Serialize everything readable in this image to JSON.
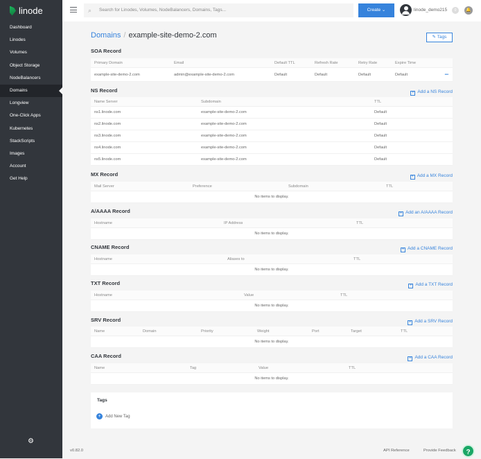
{
  "brand": "linode",
  "sidebar": {
    "items": [
      {
        "label": "Dashboard"
      },
      {
        "label": "Linodes"
      },
      {
        "label": "Volumes"
      },
      {
        "label": "Object Storage"
      },
      {
        "label": "NodeBalancers"
      },
      {
        "label": "Domains",
        "active": true
      },
      {
        "label": "Longview"
      },
      {
        "label": "One-Click Apps"
      },
      {
        "label": "Kubernetes"
      },
      {
        "label": "StackScripts"
      },
      {
        "label": "Images"
      },
      {
        "label": "Account"
      },
      {
        "label": "Get Help"
      }
    ]
  },
  "topbar": {
    "search_placeholder": "Search for Linodes, Volumes, NodeBalancers, Domains, Tags...",
    "create_label": "Create",
    "username": "linode_demo215",
    "notification_count": "0"
  },
  "breadcrumb": {
    "parent": "Domains",
    "current": "example-site-demo-2.com"
  },
  "tags_button": "Tags",
  "sections": [
    {
      "title": "SOA Record",
      "columns": [
        "Primary Domain",
        "Email",
        "Default TTL",
        "Refresh Rate",
        "Retry Rate",
        "Expire Time"
      ],
      "rows": [
        [
          "example-site-demo-2.com",
          "admin@example-site-demo-2.com",
          "Default",
          "Default",
          "Default",
          "Default"
        ]
      ]
    },
    {
      "title": "NS Record",
      "add": "Add a NS Record",
      "columns": [
        "Name Server",
        "Subdomain",
        "TTL"
      ],
      "rows": [
        [
          "ns1.linode.com",
          "example-site-demo-2.com",
          "Default"
        ],
        [
          "ns2.linode.com",
          "example-site-demo-2.com",
          "Default"
        ],
        [
          "ns3.linode.com",
          "example-site-demo-2.com",
          "Default"
        ],
        [
          "ns4.linode.com",
          "example-site-demo-2.com",
          "Default"
        ],
        [
          "ns5.linode.com",
          "example-site-demo-2.com",
          "Default"
        ]
      ]
    },
    {
      "title": "MX Record",
      "add": "Add a MX Record",
      "columns": [
        "Mail Server",
        "Preference",
        "Subdomain",
        "TTL"
      ],
      "rows": []
    },
    {
      "title": "A/AAAA Record",
      "add": "Add an A/AAAA Record",
      "columns": [
        "Hostname",
        "IP Address",
        "TTL"
      ],
      "rows": []
    },
    {
      "title": "CNAME Record",
      "add": "Add a CNAME Record",
      "columns": [
        "Hostname",
        "Aliases to",
        "TTL"
      ],
      "rows": []
    },
    {
      "title": "TXT Record",
      "add": "Add a TXT Record",
      "columns": [
        "Hostname",
        "Value",
        "TTL"
      ],
      "rows": []
    },
    {
      "title": "SRV Record",
      "add": "Add a SRV Record",
      "columns": [
        "Name",
        "Domain",
        "Priority",
        "Weight",
        "Port",
        "Target",
        "TTL"
      ],
      "rows": []
    },
    {
      "title": "CAA Record",
      "add": "Add a CAA Record",
      "columns": [
        "Name",
        "Tag",
        "Value",
        "TTL"
      ],
      "rows": []
    }
  ],
  "empty_text": "No items to display.",
  "tags": {
    "title": "Tags",
    "add_label": "Add New Tag"
  },
  "footer": {
    "version": "v0.82.0",
    "api_reference": "API Reference",
    "feedback": "Provide Feedback"
  }
}
